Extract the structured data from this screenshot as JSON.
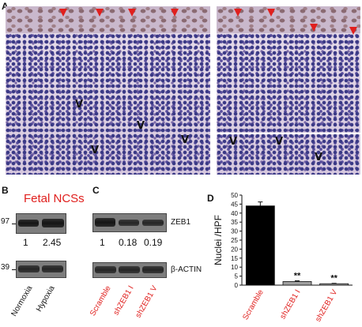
{
  "panels": {
    "a": {
      "letter": "A"
    },
    "b": {
      "letter": "B",
      "title": "Fetal NCSs",
      "marker_97": "97",
      "marker_39": "39",
      "values": [
        "1",
        "2.45"
      ],
      "lanes": [
        "Normoxia",
        "Hypoxia"
      ]
    },
    "c": {
      "letter": "C",
      "label_top": "ZEB1",
      "label_bottom": "β-ACTIN",
      "values": [
        "1",
        "0.18",
        "0.19"
      ],
      "lanes": [
        "Scramble",
        "shZEB1 I",
        "shZEB1 V"
      ]
    },
    "d": {
      "letter": "D"
    }
  },
  "colors": {
    "red": "#e0201e",
    "bar_scramble": "#000000",
    "bar_sh": "#a0a0a0"
  },
  "chart_data": {
    "type": "bar",
    "categories": [
      "Scramble",
      "shZEB1 I",
      "shZEB1 V"
    ],
    "values": [
      44,
      2,
      0.8
    ],
    "errors": [
      2.2,
      0.4,
      0.2
    ],
    "annotations": [
      "",
      "**",
      "**"
    ],
    "ylabel": "Nuclei /HPF",
    "ylim": [
      0,
      50
    ],
    "yticks": [
      0,
      5,
      10,
      15,
      20,
      25,
      30,
      35,
      40,
      45,
      50
    ],
    "grid": false
  }
}
